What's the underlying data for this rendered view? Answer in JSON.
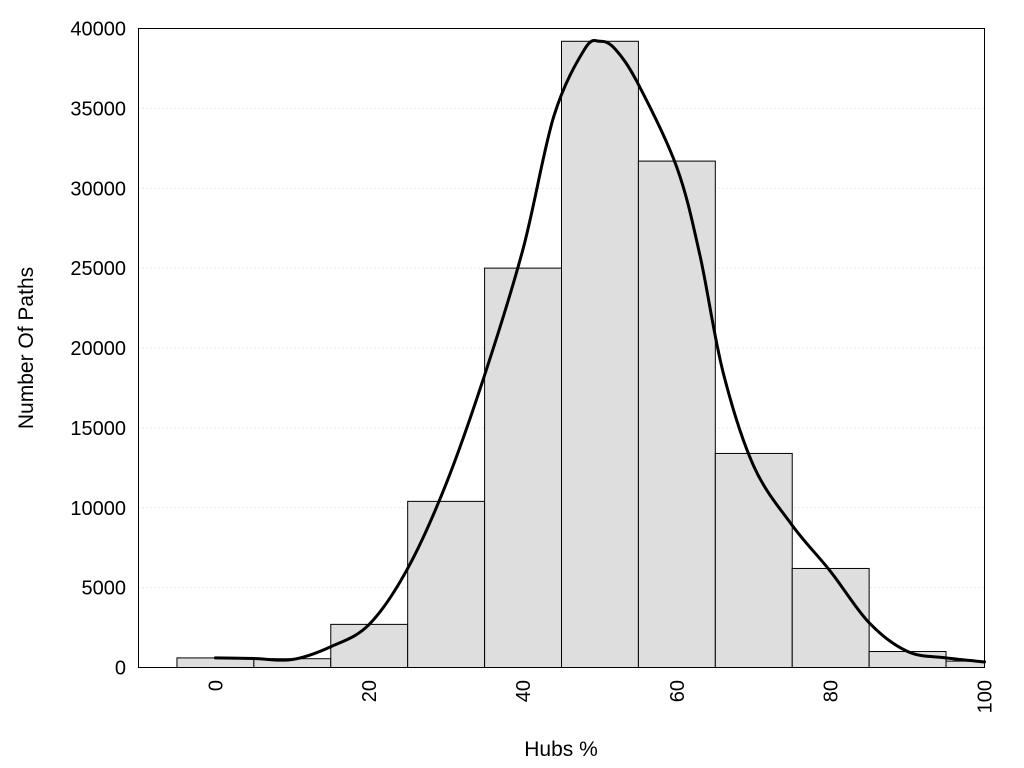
{
  "chart_data": {
    "type": "bar",
    "title": "",
    "xlabel": "Hubs %",
    "ylabel": "Number Of Paths",
    "xlim": [
      -10,
      100
    ],
    "ylim": [
      0,
      40000
    ],
    "x_ticks": [
      "0",
      "20",
      "40",
      "60",
      "80",
      "100"
    ],
    "y_ticks": [
      "0",
      "5000",
      "10000",
      "15000",
      "20000",
      "25000",
      "30000",
      "35000",
      "40000"
    ],
    "grid": "horizontal dotted",
    "bin_width": 10,
    "bin_centers": [
      0,
      10,
      20,
      30,
      40,
      50,
      60,
      70,
      80,
      90,
      100
    ],
    "values": [
      600,
      550,
      2700,
      10400,
      25000,
      39200,
      31700,
      13400,
      6200,
      1000,
      400
    ],
    "density_curve": {
      "x": [
        0,
        5,
        10,
        15,
        20,
        25,
        30,
        35,
        40,
        44,
        48,
        50,
        52,
        55,
        60,
        63,
        66,
        70,
        75,
        80,
        85,
        90,
        95,
        100
      ],
      "y": [
        600,
        560,
        500,
        1300,
        2700,
        6200,
        11500,
        18300,
        26200,
        34500,
        38700,
        39200,
        38700,
        36500,
        31300,
        25800,
        18500,
        12600,
        8900,
        6000,
        2800,
        1000,
        600,
        350
      ]
    },
    "colors": {
      "bar_fill": "#dedede",
      "bar_stroke": "#000000",
      "curve": "#000000",
      "background": "#ffffff"
    }
  }
}
